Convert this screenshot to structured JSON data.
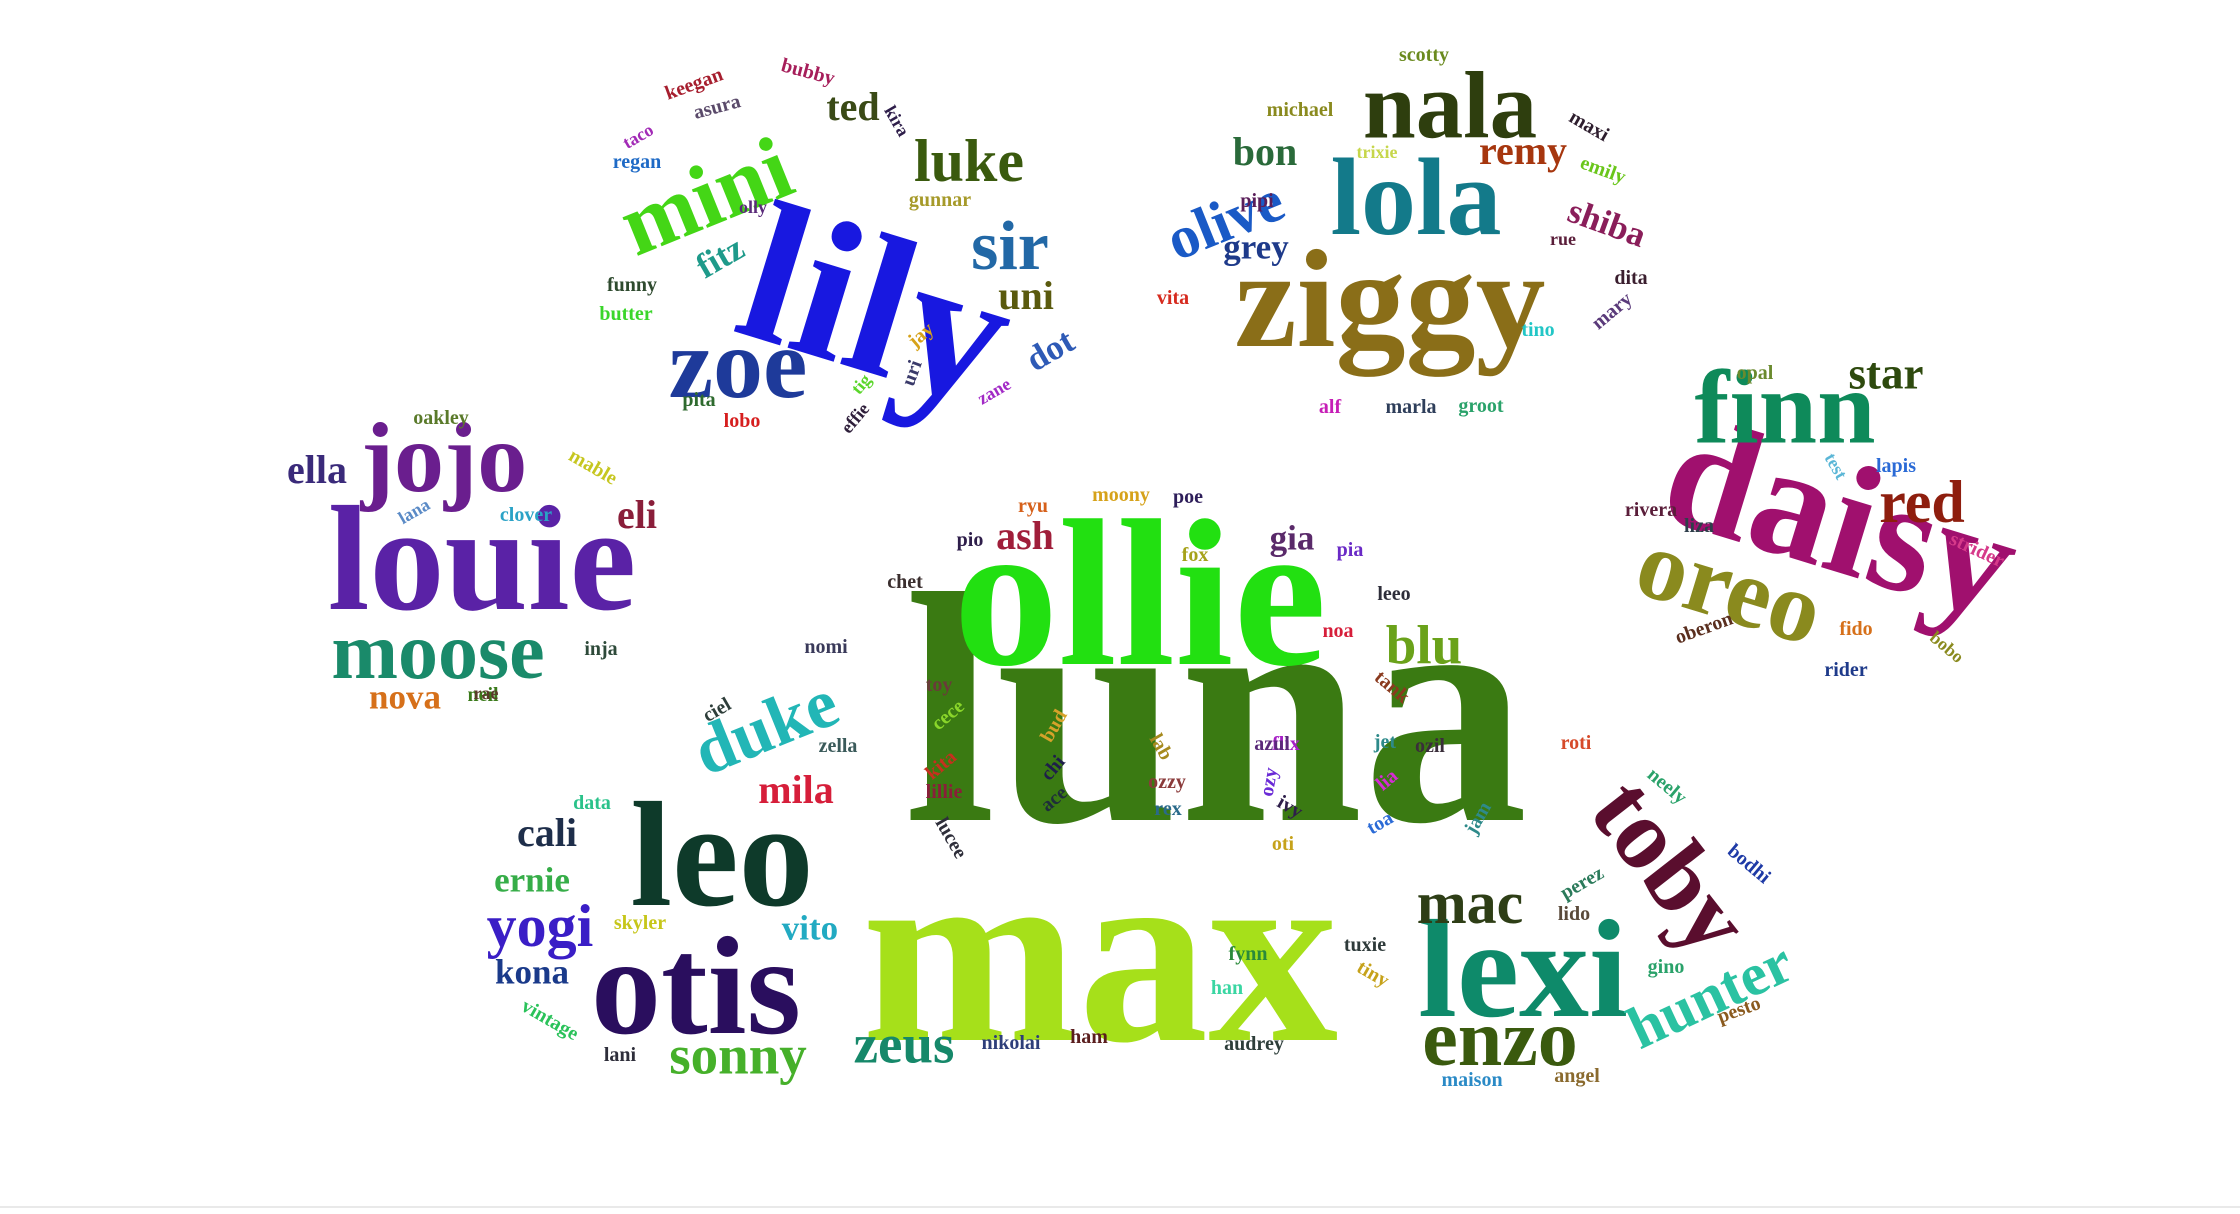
{
  "words": [
    {
      "text": "luna",
      "color": "#3a7a12"
    },
    {
      "text": "max",
      "color": "#a6e01a"
    },
    {
      "text": "ollie",
      "color": "#22e011"
    },
    {
      "text": "lily",
      "color": "#1818e0"
    },
    {
      "text": "ziggy",
      "color": "#8a6e18"
    },
    {
      "text": "louie",
      "color": "#5a22a6"
    },
    {
      "text": "daisy",
      "color": "#a0106e"
    },
    {
      "text": "leo",
      "color": "#0e3a2a"
    },
    {
      "text": "otis",
      "color": "#2a0e5e"
    },
    {
      "text": "lexi",
      "color": "#0e8a6a"
    },
    {
      "text": "lola",
      "color": "#137a8a"
    },
    {
      "text": "nala",
      "color": "#2e3e0e"
    },
    {
      "text": "finn",
      "color": "#0e8a5a"
    },
    {
      "text": "zoe",
      "color": "#1e3a9a"
    },
    {
      "text": "mini",
      "color": "#44d616"
    },
    {
      "text": "jojo",
      "color": "#6a1e8e"
    },
    {
      "text": "oreo",
      "color": "#8a8a1e"
    },
    {
      "text": "toby",
      "color": "#5a0e2e"
    },
    {
      "text": "moose",
      "color": "#1a8a6a"
    },
    {
      "text": "duke",
      "color": "#22b6b6"
    },
    {
      "text": "enzo",
      "color": "#3a5a0e"
    },
    {
      "text": "hunter",
      "color": "#2ac2a2"
    },
    {
      "text": "sonny",
      "color": "#46b02a"
    },
    {
      "text": "zeus",
      "color": "#16886a"
    },
    {
      "text": "mac",
      "color": "#2e3e16"
    },
    {
      "text": "olive",
      "color": "#1a5ac6"
    },
    {
      "text": "yogi",
      "color": "#3a1ec6"
    },
    {
      "text": "sir",
      "color": "#2268a6"
    },
    {
      "text": "luke",
      "color": "#3a5a0e"
    },
    {
      "text": "blu",
      "color": "#6aa21a"
    },
    {
      "text": "red",
      "color": "#8e1e0e"
    },
    {
      "text": "star",
      "color": "#2e4a0e"
    },
    {
      "text": "bon",
      "color": "#2a6a3a"
    },
    {
      "text": "remy",
      "color": "#a6360e"
    },
    {
      "text": "shiba",
      "color": "#8a1e5a"
    },
    {
      "text": "ted",
      "color": "#3a4a16"
    },
    {
      "text": "uni",
      "color": "#5a5a0e"
    },
    {
      "text": "dot",
      "color": "#2e5ab6"
    },
    {
      "text": "fitz",
      "color": "#1e9a8a"
    },
    {
      "text": "ella",
      "color": "#3a2a7a"
    },
    {
      "text": "eli",
      "color": "#8a1e3a"
    },
    {
      "text": "nova",
      "color": "#d6701a"
    },
    {
      "text": "neil",
      "color": "#3a7a1a"
    },
    {
      "text": "grey",
      "color": "#1e3a8a"
    },
    {
      "text": "cali",
      "color": "#1e2e4a"
    },
    {
      "text": "ernie",
      "color": "#36ad48"
    },
    {
      "text": "mila",
      "color": "#d61e3a"
    },
    {
      "text": "vito",
      "color": "#22aac2"
    },
    {
      "text": "kona",
      "color": "#1a3a8a"
    },
    {
      "text": "ash",
      "color": "#a01e3a"
    },
    {
      "text": "gia",
      "color": "#5a2a6a"
    },
    {
      "text": "oakley",
      "color": "#5a7a2a"
    },
    {
      "text": "mable",
      "color": "#c6c620"
    },
    {
      "text": "lana",
      "color": "#5a8ac6"
    },
    {
      "text": "clover",
      "color": "#2aa2c6"
    },
    {
      "text": "inja",
      "color": "#2e4a3a"
    },
    {
      "text": "rae",
      "color": "#5a3a2a"
    },
    {
      "text": "keegan",
      "color": "#a61e2e"
    },
    {
      "text": "asura",
      "color": "#5a4a6a"
    },
    {
      "text": "taco",
      "color": "#a22ab6"
    },
    {
      "text": "regan",
      "color": "#1e6ac6"
    },
    {
      "text": "bubby",
      "color": "#a61e5a"
    },
    {
      "text": "kira",
      "color": "#2e1e4a"
    },
    {
      "text": "gunnar",
      "color": "#a69a2a"
    },
    {
      "text": "olly",
      "color": "#5a2a7a"
    },
    {
      "text": "funny",
      "color": "#2e4a2e"
    },
    {
      "text": "butter",
      "color": "#3ad62a"
    },
    {
      "text": "jay",
      "color": "#d6a21a"
    },
    {
      "text": "uri",
      "color": "#3a3a6a"
    },
    {
      "text": "tig",
      "color": "#5ad62a"
    },
    {
      "text": "pita",
      "color": "#2e6a2e"
    },
    {
      "text": "lobo",
      "color": "#d61e1e"
    },
    {
      "text": "effie",
      "color": "#2e1e3a"
    },
    {
      "text": "zane",
      "color": "#a22ac6"
    },
    {
      "text": "scotty",
      "color": "#6a8a1e"
    },
    {
      "text": "michael",
      "color": "#8a8a1e"
    },
    {
      "text": "maxi",
      "color": "#2e1e2e"
    },
    {
      "text": "emily",
      "color": "#6ac61a"
    },
    {
      "text": "trixie",
      "color": "#c6d64a"
    },
    {
      "text": "pipi",
      "color": "#5a1e5a"
    },
    {
      "text": "rue",
      "color": "#5a1e3a"
    },
    {
      "text": "dita",
      "color": "#3a1e2e"
    },
    {
      "text": "vita",
      "color": "#d62a1e"
    },
    {
      "text": "tino",
      "color": "#22c6c6"
    },
    {
      "text": "mary",
      "color": "#5a3a7a"
    },
    {
      "text": "alf",
      "color": "#c61eb6"
    },
    {
      "text": "marla",
      "color": "#2e3e5a"
    },
    {
      "text": "groot",
      "color": "#2aa26a"
    },
    {
      "text": "opal",
      "color": "#6a8a2e"
    },
    {
      "text": "test",
      "color": "#5ab6d6"
    },
    {
      "text": "lapis",
      "color": "#2a6ad6"
    },
    {
      "text": "rivera",
      "color": "#5a1e3a"
    },
    {
      "text": "liza",
      "color": "#2e3e4a"
    },
    {
      "text": "strider",
      "color": "#d63a8a"
    },
    {
      "text": "oberon",
      "color": "#5a2e1e"
    },
    {
      "text": "fido",
      "color": "#d6701a"
    },
    {
      "text": "rider",
      "color": "#1e3a8a"
    },
    {
      "text": "bobo",
      "color": "#8a8a1e"
    },
    {
      "text": "ryu",
      "color": "#d6601a"
    },
    {
      "text": "moony",
      "color": "#d6a21a"
    },
    {
      "text": "poe",
      "color": "#2e1e5a"
    },
    {
      "text": "pio",
      "color": "#2e1e4a"
    },
    {
      "text": "fox",
      "color": "#a6a21a"
    },
    {
      "text": "pia",
      "color": "#6a2ac6"
    },
    {
      "text": "chet",
      "color": "#3a2e2e"
    },
    {
      "text": "leeo",
      "color": "#2e2e3a"
    },
    {
      "text": "noa",
      "color": "#d61e3a"
    },
    {
      "text": "nomi",
      "color": "#3a3a5a"
    },
    {
      "text": "toy",
      "color": "#6a3a3a"
    },
    {
      "text": "tank",
      "color": "#8a3a1e"
    },
    {
      "text": "ciel",
      "color": "#2e3e3a"
    },
    {
      "text": "zella",
      "color": "#3a5a5a"
    },
    {
      "text": "cece",
      "color": "#8ad62a"
    },
    {
      "text": "bud",
      "color": "#d6a22a"
    },
    {
      "text": "flix",
      "color": "#a61ec6"
    },
    {
      "text": "jet",
      "color": "#2e8a8a"
    },
    {
      "text": "ozil",
      "color": "#3a2e3a"
    },
    {
      "text": "roti",
      "color": "#d64a2a"
    },
    {
      "text": "kita",
      "color": "#c6301e"
    },
    {
      "text": "chi",
      "color": "#1e1e4a"
    },
    {
      "text": "lab",
      "color": "#a68a1e"
    },
    {
      "text": "azul",
      "color": "#5a2a7a"
    },
    {
      "text": "lia",
      "color": "#d62ad6"
    },
    {
      "text": "lillie",
      "color": "#8a1e3a"
    },
    {
      "text": "ace",
      "color": "#1e2e3a"
    },
    {
      "text": "ozzy",
      "color": "#8a3a3a"
    },
    {
      "text": "rex",
      "color": "#2a6a8a"
    },
    {
      "text": "ivy",
      "color": "#2e1e4a"
    },
    {
      "text": "ozy",
      "color": "#6a2ad6"
    },
    {
      "text": "toa",
      "color": "#2a6ad6"
    },
    {
      "text": "jam",
      "color": "#2e8a8a"
    },
    {
      "text": "neely",
      "color": "#2aa26a"
    },
    {
      "text": "data",
      "color": "#2ac28a"
    },
    {
      "text": "lucee",
      "color": "#2e2e3a"
    },
    {
      "text": "oti",
      "color": "#c6a21a"
    },
    {
      "text": "perez",
      "color": "#2a7a5a"
    },
    {
      "text": "lido",
      "color": "#5a4a3a"
    },
    {
      "text": "bodhi",
      "color": "#1e3aa6"
    },
    {
      "text": "skyler",
      "color": "#c6c61a"
    },
    {
      "text": "fynn",
      "color": "#2a8a3a"
    },
    {
      "text": "tuxie",
      "color": "#2e3a3a"
    },
    {
      "text": "gino",
      "color": "#2aa26a"
    },
    {
      "text": "han",
      "color": "#3ad6a2"
    },
    {
      "text": "tiny",
      "color": "#c6a21a"
    },
    {
      "text": "pesto",
      "color": "#8a5a1e"
    },
    {
      "text": "vintage",
      "color": "#2ac25a"
    },
    {
      "text": "lani",
      "color": "#2e2e3a"
    },
    {
      "text": "nikolai",
      "color": "#2e3e7a"
    },
    {
      "text": "ham",
      "color": "#5a1e1e"
    },
    {
      "text": "audrey",
      "color": "#2e3e3a"
    },
    {
      "text": "maison",
      "color": "#2a8ac6"
    },
    {
      "text": "angel",
      "color": "#8a6a2e"
    }
  ]
}
